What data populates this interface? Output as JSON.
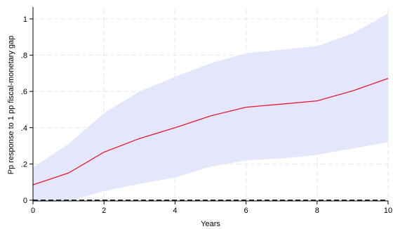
{
  "chart_data": {
    "type": "line",
    "xlabel": "Years",
    "ylabel": "Pp response to 1 pp fiscal-monetary gap",
    "xlim": [
      0,
      10
    ],
    "ylim": [
      0,
      1.05
    ],
    "xticks": [
      0,
      2,
      4,
      6,
      8,
      10
    ],
    "xtick_labels": [
      "0",
      "2",
      "4",
      "6",
      "8",
      "10"
    ],
    "yticks": [
      0,
      0.2,
      0.4,
      0.6,
      0.8,
      1
    ],
    "ytick_labels": [
      "0",
      ".2",
      ".4",
      ".6",
      ".8",
      "1"
    ],
    "grid": true,
    "x": [
      0,
      1,
      2,
      3,
      4,
      5,
      6,
      7,
      8,
      9,
      10
    ],
    "series": [
      {
        "values": [
          0.085,
          0.15,
          0.265,
          0.34,
          0.4,
          0.465,
          0.513,
          0.53,
          0.548,
          0.603,
          0.672
        ]
      }
    ],
    "band": {
      "upper": [
        0.18,
        0.31,
        0.48,
        0.6,
        0.68,
        0.755,
        0.81,
        0.83,
        0.85,
        0.92,
        1.03
      ],
      "lower": [
        -0.01,
        -0.005,
        0.05,
        0.09,
        0.125,
        0.185,
        0.22,
        0.23,
        0.25,
        0.285,
        0.32
      ]
    },
    "reference_line": {
      "y": 0,
      "style": "dashed"
    },
    "colors": {
      "line": "#e8192c",
      "band": "#e4e6fb",
      "grid": "#e6e6e6",
      "reference": "#000000"
    }
  }
}
